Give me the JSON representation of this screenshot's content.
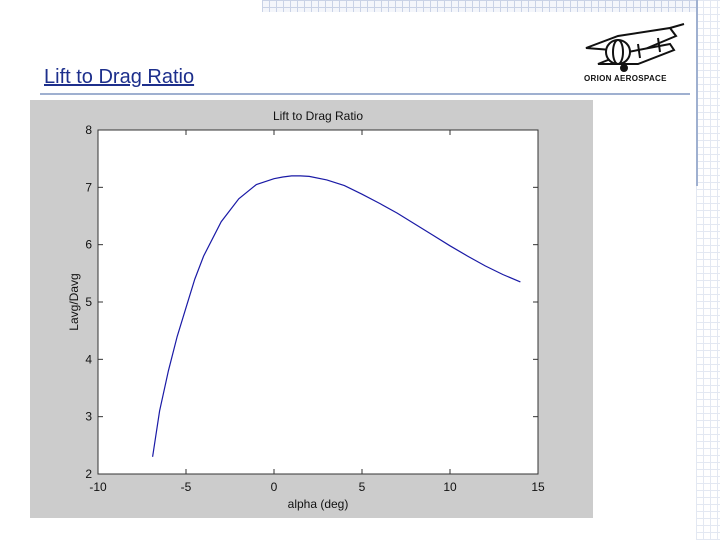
{
  "slide": {
    "title": "Lift to Drag Ratio",
    "logo_text": "ORION AEROSPACE"
  },
  "chart_data": {
    "type": "line",
    "title": "Lift to Drag Ratio",
    "xlabel": "alpha (deg)",
    "ylabel": "Lavg/Davg",
    "xlim": [
      -10,
      15
    ],
    "ylim": [
      2,
      8
    ],
    "xticks": [
      -10,
      -5,
      0,
      5,
      10,
      15
    ],
    "yticks": [
      2,
      3,
      4,
      5,
      6,
      7,
      8
    ],
    "grid": false,
    "series": [
      {
        "color": "#1a1aa6",
        "x": [
          -6.9,
          -6.5,
          -6.0,
          -5.5,
          -5.0,
          -4.5,
          -4.0,
          -3.0,
          -2.0,
          -1.0,
          0.0,
          0.5,
          1.0,
          1.5,
          2.0,
          3.0,
          4.0,
          5.0,
          6.0,
          7.0,
          8.0,
          9.0,
          10.0,
          11.0,
          12.0,
          13.0,
          14.0
        ],
        "values": [
          2.3,
          3.1,
          3.8,
          4.4,
          4.9,
          5.4,
          5.8,
          6.4,
          6.8,
          7.05,
          7.15,
          7.18,
          7.2,
          7.2,
          7.19,
          7.13,
          7.03,
          6.88,
          6.72,
          6.55,
          6.36,
          6.17,
          5.98,
          5.8,
          5.63,
          5.48,
          5.35
        ]
      }
    ]
  }
}
